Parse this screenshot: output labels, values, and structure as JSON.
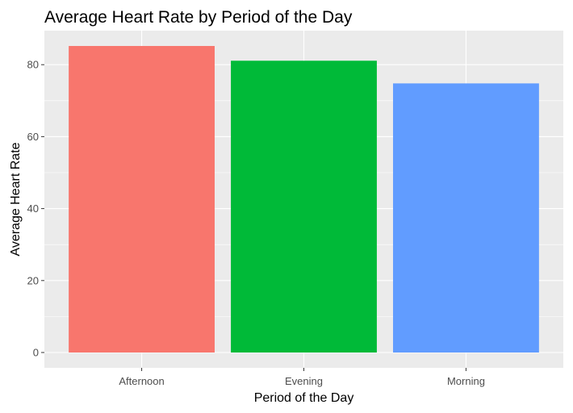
{
  "chart_data": {
    "type": "bar",
    "title": "Average Heart Rate by Period of the Day",
    "xlabel": "Period of the Day",
    "ylabel": "Average Heart Rate",
    "categories": [
      "Afternoon",
      "Evening",
      "Morning"
    ],
    "values": [
      85.2,
      81.1,
      74.8
    ],
    "colors": [
      "#F8766D",
      "#00BA38",
      "#619CFF"
    ],
    "ylim": [
      -4.26,
      89.46
    ],
    "y_ticks": [
      0,
      20,
      40,
      60,
      80
    ],
    "y_tick_labels": [
      "0",
      "20",
      "40",
      "60",
      "80"
    ],
    "grid": true,
    "legend": "none",
    "panel_background": "#EBEBEB",
    "grid_color": "#FFFFFF"
  }
}
